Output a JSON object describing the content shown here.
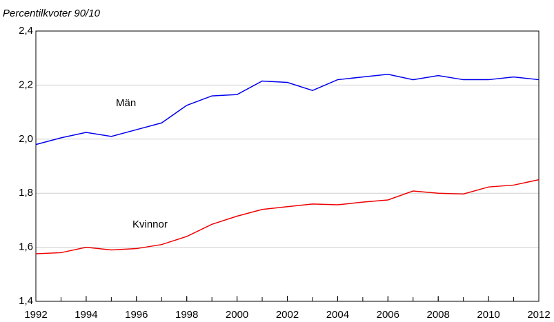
{
  "chart_data": {
    "type": "line",
    "title": "Percentilkvoter 90/10",
    "x": [
      1992,
      1993,
      1994,
      1995,
      1996,
      1997,
      1998,
      1999,
      2000,
      2001,
      2002,
      2003,
      2004,
      2005,
      2006,
      2007,
      2008,
      2009,
      2010,
      2011,
      2012
    ],
    "series": [
      {
        "name": "Män",
        "color": "#0000ee",
        "values": [
          1.98,
          2.005,
          2.025,
          2.01,
          2.035,
          2.06,
          2.125,
          2.16,
          2.165,
          2.215,
          2.21,
          2.18,
          2.22,
          2.23,
          2.24,
          2.22,
          2.235,
          2.22,
          2.22,
          2.23,
          2.22
        ]
      },
      {
        "name": "Kvinnor",
        "color": "#ee0000",
        "values": [
          1.576,
          1.58,
          1.6,
          1.59,
          1.595,
          1.61,
          1.64,
          1.685,
          1.715,
          1.74,
          1.75,
          1.76,
          1.757,
          1.767,
          1.775,
          1.808,
          1.8,
          1.797,
          1.823,
          1.83,
          1.85
        ]
      }
    ],
    "xlim": [
      1992,
      2012
    ],
    "xticks": [
      1992,
      1994,
      1996,
      1998,
      2000,
      2002,
      2004,
      2006,
      2008,
      2010,
      2012
    ],
    "ylim": [
      1.4,
      2.4
    ],
    "yticks": [
      {
        "value": 1.4,
        "label": "1,4"
      },
      {
        "value": 1.6,
        "label": "1,6"
      },
      {
        "value": 1.8,
        "label": "1,8"
      },
      {
        "value": 2.0,
        "label": "2,0"
      },
      {
        "value": 2.2,
        "label": "2,2"
      },
      {
        "value": 2.4,
        "label": "2,4"
      }
    ],
    "grid": true
  }
}
